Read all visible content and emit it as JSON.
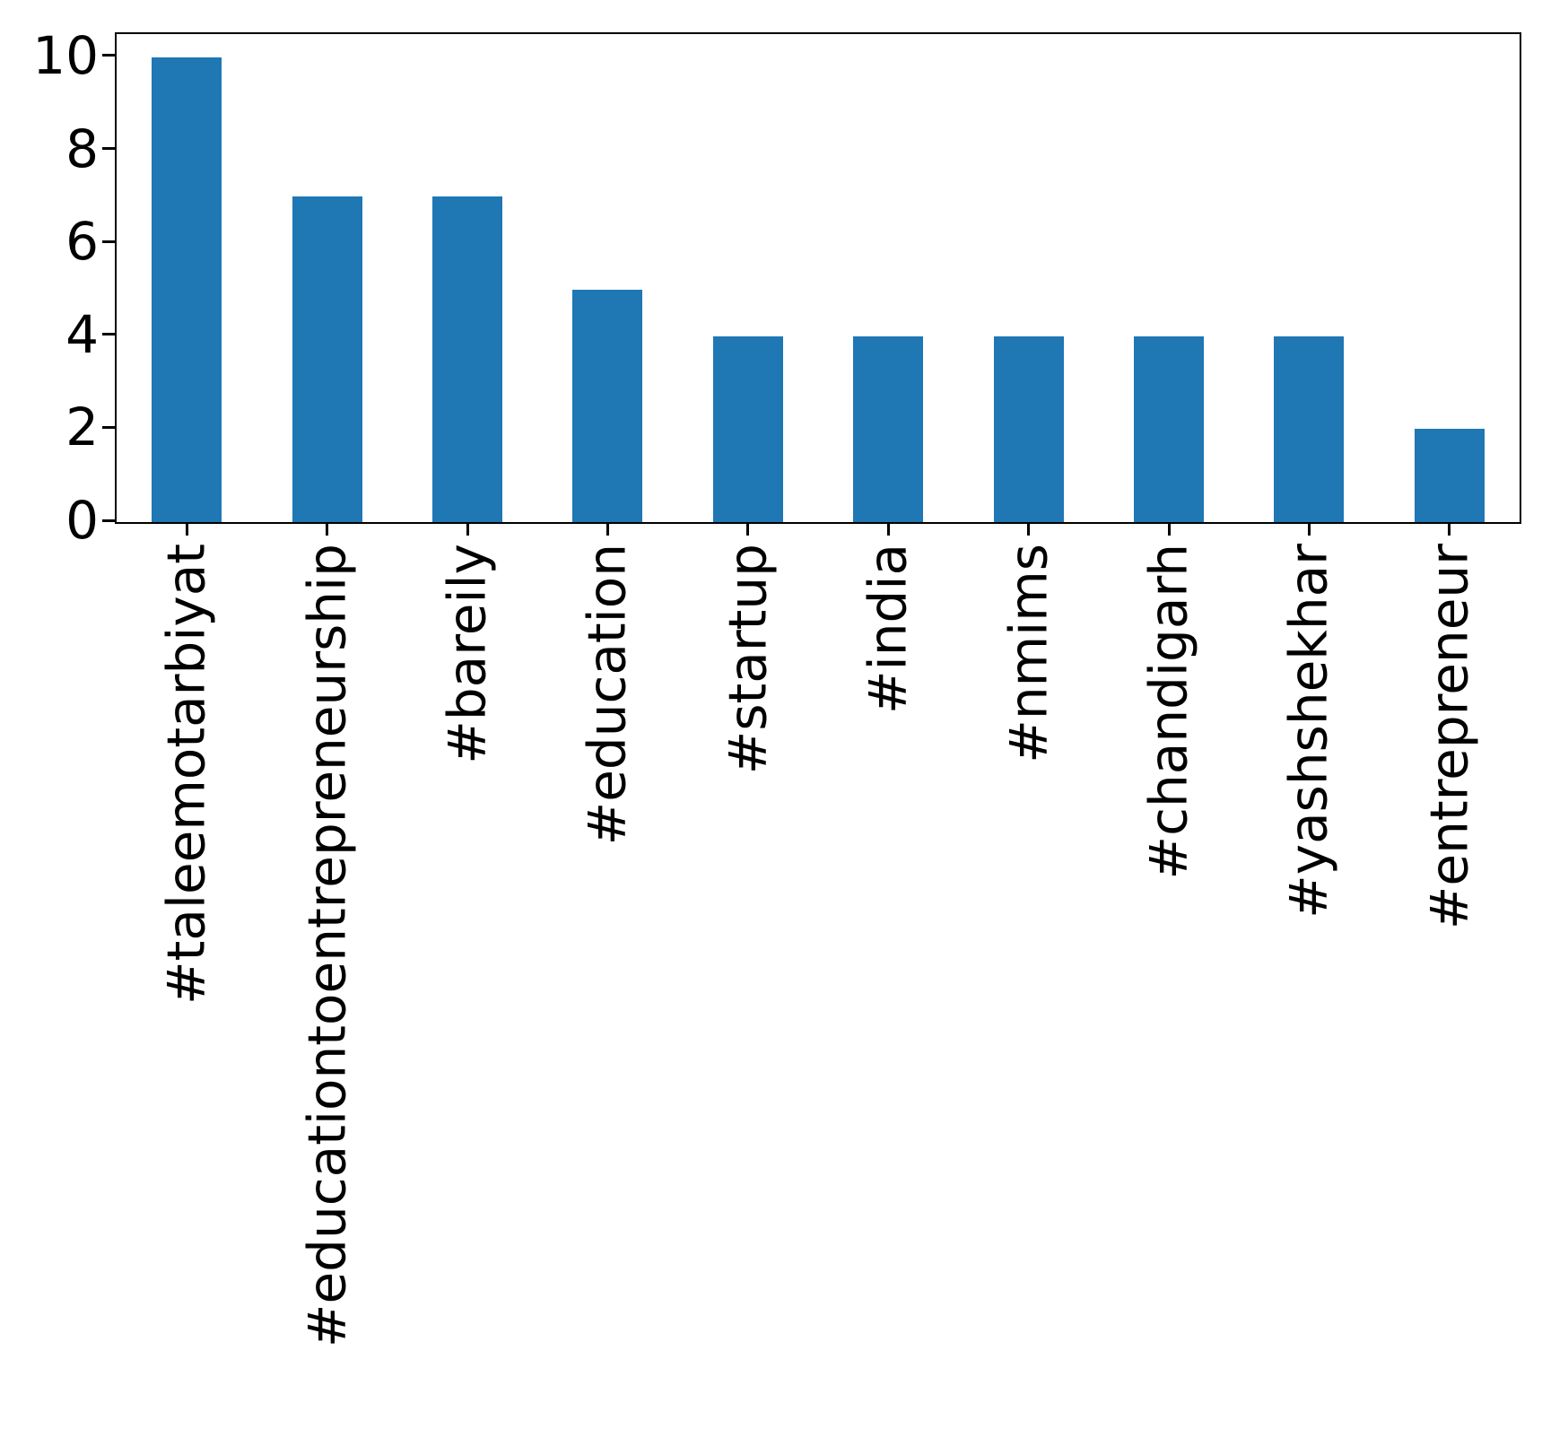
{
  "chart_data": {
    "type": "bar",
    "title": "",
    "xlabel": "",
    "ylabel": "",
    "categories": [
      "#taleemotarbiyat",
      "#educationtoentrepreneurship",
      "#bareily",
      "#education",
      "#startup",
      "#india",
      "#nmims",
      "#chandigarh",
      "#yashshekhar",
      "#entrepreneur"
    ],
    "values": [
      10,
      7,
      7,
      5,
      4,
      4,
      4,
      4,
      4,
      2
    ],
    "yticks": [
      0,
      2,
      4,
      6,
      8,
      10
    ],
    "ylim": [
      0,
      10.5
    ],
    "bar_width_fraction": 0.5,
    "grid": false,
    "legend": null,
    "colors": {
      "bar": "#1f77b4",
      "axis": "#000000",
      "tick_label": "#000000",
      "background": "#ffffff"
    }
  }
}
